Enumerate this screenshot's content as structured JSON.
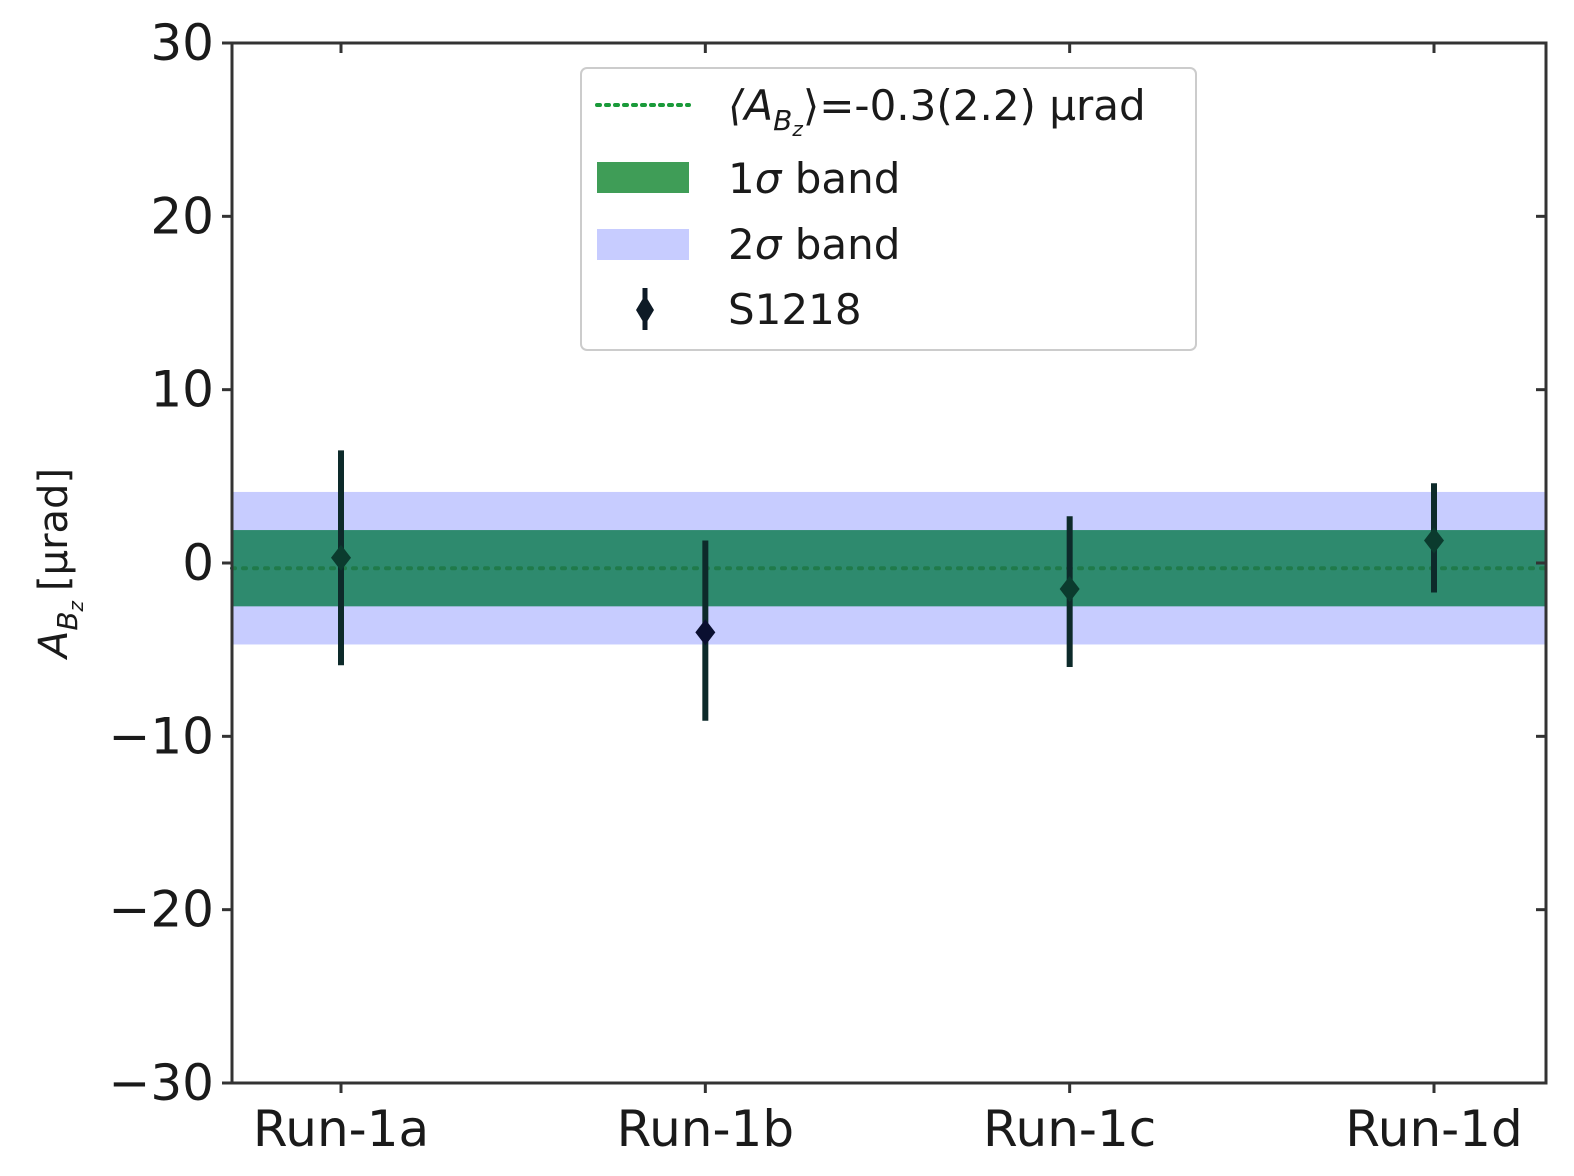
{
  "chart_data": {
    "type": "scatter",
    "categories": [
      "Run-1a",
      "Run-1b",
      "Run-1c",
      "Run-1d"
    ],
    "series": [
      {
        "name": "S1218",
        "values": [
          0.3,
          -4.0,
          -1.5,
          1.3
        ],
        "err_low": [
          6.2,
          5.1,
          4.5,
          3.0
        ],
        "err_high": [
          6.2,
          5.3,
          4.2,
          3.3
        ],
        "color": "#0d2a2a"
      }
    ],
    "mean": {
      "value": -0.3,
      "uncertainty": 2.2,
      "color": "#1a9a3a"
    },
    "band_1sigma": {
      "low": -2.5,
      "high": 1.9,
      "color": "#2e8a6e"
    },
    "band_2sigma": {
      "low": -4.7,
      "high": 4.1,
      "color": "#c7ccff"
    },
    "ylim": [
      -30,
      30
    ],
    "yticks": [
      30,
      20,
      10,
      0,
      -10,
      -20,
      -30
    ],
    "ytick_labels": [
      "30",
      "20",
      "10",
      "0",
      "−10",
      "−20",
      "−30"
    ],
    "ylabel": {
      "main": "A",
      "sub": "B",
      "subsub": "z",
      "unit": "[μrad]"
    },
    "legend": {
      "position": "top-center",
      "mean_label": {
        "pre": "⟨A",
        "sub": "B",
        "subsub": "z",
        "post": "⟩=-0.3(2.2) μrad"
      },
      "band1": {
        "pre": "1",
        "sym": "σ",
        "post": " band"
      },
      "band2": {
        "pre": "2",
        "sym": "σ",
        "post": " band"
      },
      "points": "S1218"
    },
    "grid": false
  }
}
